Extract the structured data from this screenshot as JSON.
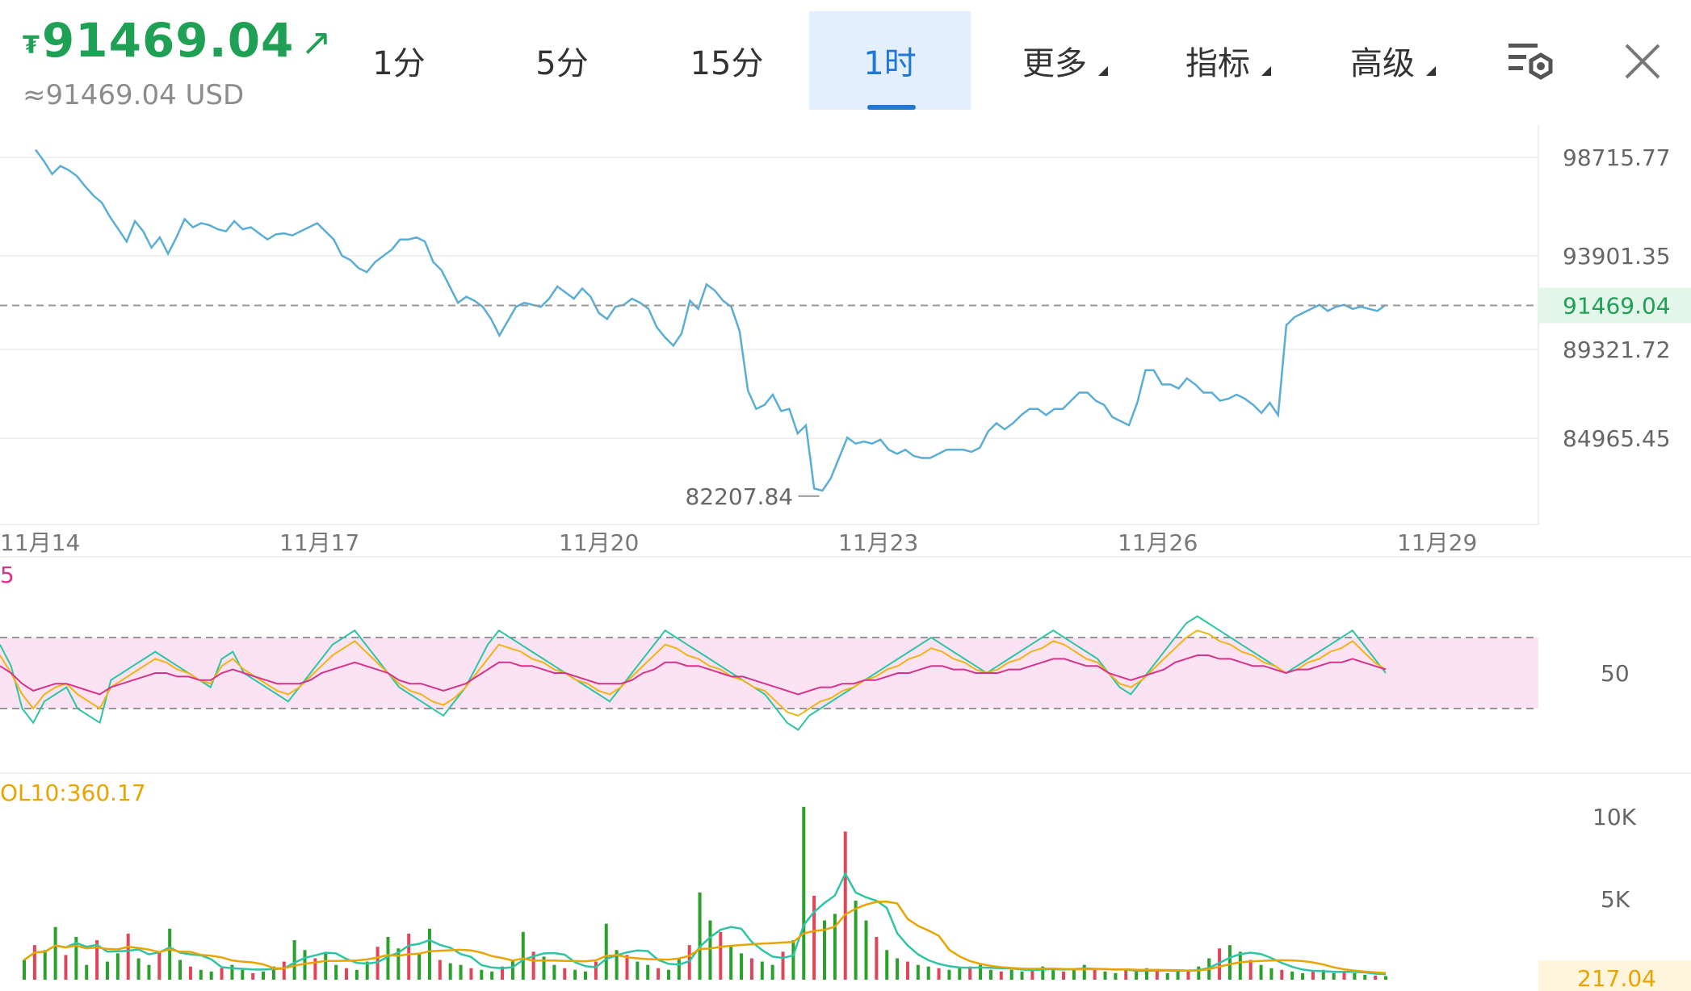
{
  "ticker": {
    "currency_symbol": "₮",
    "price": "91469.04",
    "trend_arrow": "↗",
    "usd_equivalent": "≈91469.04 USD",
    "color": "#1fa055"
  },
  "tabs": [
    {
      "label": "1分",
      "active": false
    },
    {
      "label": "5分",
      "active": false
    },
    {
      "label": "15分",
      "active": false
    },
    {
      "label": "1时",
      "active": true
    },
    {
      "label": "更多",
      "active": false,
      "dropdown": true
    },
    {
      "label": "指标",
      "active": false,
      "dropdown": true
    },
    {
      "label": "高级",
      "active": false,
      "dropdown": true
    }
  ],
  "icons": {
    "settings": "chart-settings-icon",
    "close": "close-icon"
  },
  "colors": {
    "price_line": "#5aaed6",
    "accent": "#1f77d8",
    "rsi_fast": "#2ec4a4",
    "rsi_mid": "#f0b419",
    "rsi_slow": "#d6338c",
    "rsi_band": "#fbe3f3",
    "vol_up": "#2ca02c",
    "vol_down": "#e0455a",
    "current_price": "#1fa055",
    "vol_label": "#e8a400"
  },
  "chart_data": [
    {
      "panel": "price",
      "type": "line",
      "y_ticks": [
        "98715.77",
        "93901.35",
        "89321.72",
        "84965.45"
      ],
      "current_price_label": "91469.04",
      "min_label": "82207.84",
      "x_ticks": [
        "11月14",
        "11月17",
        "11月20",
        "11月23",
        "11月26",
        "11月29"
      ],
      "series": [
        {
          "values": [
            99100,
            98550,
            97900,
            98300,
            98100,
            97800,
            97300,
            96850,
            96500,
            95800,
            95200,
            94600,
            95600,
            95100,
            94300,
            94800,
            94000,
            94800,
            95700,
            95300,
            95500,
            95400,
            95200,
            95100,
            95600,
            95200,
            95300,
            95000,
            94700,
            94950,
            95000,
            94900,
            95100,
            95300,
            95500,
            95100,
            94700,
            93900,
            93700,
            93300,
            93100,
            93600,
            93900,
            94200,
            94700,
            94700,
            94800,
            94600,
            93600,
            93200,
            92400,
            91600,
            91900,
            91700,
            91400,
            90800,
            90000,
            90700,
            91400,
            91600,
            91500,
            91400,
            91800,
            92400,
            92100,
            91800,
            92300,
            91900,
            91100,
            90800,
            91400,
            91500,
            91800,
            91600,
            91300,
            90400,
            89900,
            89500,
            90100,
            91700,
            91300,
            92500,
            92200,
            91700,
            91400,
            90200,
            87300,
            86400,
            86600,
            87100,
            86300,
            86400,
            85200,
            85600,
            82500,
            82400,
            83000,
            84000,
            85000,
            84700,
            84800,
            84700,
            84900,
            84400,
            84200,
            84400,
            84100,
            84000,
            84000,
            84200,
            84400,
            84400,
            84400,
            84300,
            84500,
            85300,
            85700,
            85400,
            85700,
            86100,
            86400,
            86400,
            86100,
            86400,
            86400,
            86800,
            87200,
            87200,
            86800,
            86600,
            86000,
            85800,
            85600,
            86700,
            88300,
            88300,
            87600,
            87600,
            87400,
            87900,
            87600,
            87200,
            87200,
            86800,
            86900,
            87100,
            86900,
            86600,
            86200,
            86700,
            86100,
            90500,
            90900,
            91100,
            91300,
            91500,
            91200,
            91400,
            91500,
            91300,
            91400,
            91300,
            91200,
            91500
          ]
        }
      ]
    },
    {
      "panel": "rsi",
      "type": "line",
      "corner_label": "5",
      "y_ticks": [
        "50"
      ],
      "series": [
        {
          "values": [
            58,
            52,
            40,
            36,
            42,
            44,
            46,
            40,
            38,
            36,
            48,
            50,
            52,
            54,
            56,
            54,
            52,
            50,
            48,
            46,
            54,
            56,
            50,
            48,
            46,
            44,
            42,
            46,
            50,
            54,
            58,
            60,
            62,
            58,
            54,
            50,
            46,
            44,
            42,
            40,
            38,
            42,
            46,
            52,
            58,
            62,
            60,
            58,
            56,
            54,
            52,
            50,
            48,
            46,
            44,
            42,
            46,
            50,
            54,
            58,
            62,
            60,
            58,
            56,
            54,
            52,
            50,
            48,
            46,
            44,
            40,
            36,
            34,
            38,
            40,
            42,
            44,
            46,
            48,
            50,
            52,
            54,
            56,
            58,
            60,
            58,
            56,
            54,
            52,
            50,
            52,
            54,
            56,
            58,
            60,
            62,
            60,
            58,
            56,
            54,
            50,
            46,
            44,
            48,
            52,
            56,
            60,
            64,
            66,
            64,
            62,
            60,
            58,
            56,
            54,
            52,
            50,
            52,
            54,
            56,
            58,
            60,
            62,
            58,
            54,
            50
          ]
        },
        {
          "values": [
            55,
            50,
            44,
            40,
            44,
            46,
            47,
            44,
            42,
            40,
            46,
            48,
            50,
            52,
            54,
            53,
            51,
            50,
            48,
            47,
            52,
            54,
            51,
            49,
            47,
            45,
            44,
            46,
            49,
            52,
            55,
            57,
            59,
            56,
            53,
            50,
            47,
            45,
            44,
            42,
            41,
            43,
            46,
            50,
            54,
            58,
            57,
            56,
            54,
            53,
            51,
            50,
            48,
            47,
            45,
            44,
            46,
            49,
            52,
            55,
            58,
            57,
            55,
            54,
            52,
            51,
            49,
            48,
            46,
            45,
            42,
            39,
            38,
            40,
            42,
            43,
            45,
            46,
            48,
            49,
            51,
            52,
            54,
            55,
            57,
            56,
            54,
            53,
            51,
            50,
            51,
            53,
            54,
            56,
            57,
            59,
            58,
            56,
            54,
            53,
            50,
            47,
            46,
            48,
            51,
            54,
            57,
            60,
            62,
            61,
            59,
            58,
            56,
            55,
            53,
            52,
            50,
            51,
            53,
            54,
            56,
            57,
            59,
            56,
            53,
            51
          ]
        },
        {
          "values": [
            52,
            50,
            47,
            45,
            46,
            47,
            47,
            46,
            45,
            44,
            46,
            47,
            48,
            49,
            50,
            50,
            49,
            49,
            48,
            48,
            50,
            51,
            50,
            49,
            48,
            47,
            47,
            47,
            48,
            50,
            51,
            52,
            53,
            52,
            51,
            50,
            48,
            47,
            47,
            46,
            45,
            46,
            47,
            49,
            51,
            53,
            53,
            52,
            52,
            51,
            50,
            50,
            49,
            48,
            47,
            47,
            47,
            48,
            50,
            51,
            53,
            53,
            52,
            52,
            51,
            50,
            49,
            49,
            48,
            47,
            46,
            45,
            44,
            45,
            46,
            46,
            47,
            47,
            48,
            48,
            49,
            50,
            50,
            51,
            52,
            52,
            51,
            51,
            50,
            50,
            50,
            51,
            51,
            52,
            53,
            54,
            54,
            53,
            52,
            52,
            50,
            49,
            48,
            49,
            50,
            51,
            53,
            54,
            55,
            55,
            54,
            54,
            53,
            52,
            52,
            51,
            50,
            51,
            51,
            52,
            53,
            53,
            54,
            53,
            52,
            51
          ]
        }
      ]
    },
    {
      "panel": "volume",
      "type": "bar",
      "ma_label": "OL10:360.17",
      "y_ticks": [
        "10K",
        "5K"
      ],
      "current_volume_label": "217.04",
      "values": [
        1200,
        2100,
        1800,
        3200,
        1500,
        2600,
        900,
        2400,
        1100,
        1600,
        2800,
        1300,
        900,
        1700,
        3100,
        1200,
        800,
        600,
        500,
        700,
        900,
        600,
        400,
        500,
        800,
        1100,
        2400,
        1800,
        1300,
        1600,
        900,
        700,
        600,
        1100,
        2000,
        2600,
        1900,
        2800,
        1600,
        3100,
        1200,
        1000,
        900,
        700,
        600,
        500,
        800,
        1200,
        2900,
        1700,
        1400,
        900,
        700,
        600,
        500,
        1100,
        3400,
        1800,
        1500,
        1100,
        900,
        700,
        600,
        1300,
        2100,
        5300,
        3600,
        2900,
        2100,
        1600,
        1300,
        1100,
        900,
        1700,
        2400,
        10500,
        5100,
        3600,
        4000,
        9000,
        4800,
        3600,
        2600,
        1800,
        1300,
        1100,
        900,
        800,
        700,
        600,
        700,
        800,
        900,
        600,
        500,
        600,
        500,
        700,
        800,
        600,
        500,
        600,
        900,
        700,
        500,
        400,
        600,
        500,
        700,
        600,
        400,
        500,
        600,
        800,
        1300,
        1900,
        2100,
        1700,
        1200,
        900,
        700,
        600,
        500,
        400,
        500,
        600,
        400,
        500,
        400,
        300,
        250,
        217
      ],
      "directions": "down-up alternating mix"
    }
  ]
}
